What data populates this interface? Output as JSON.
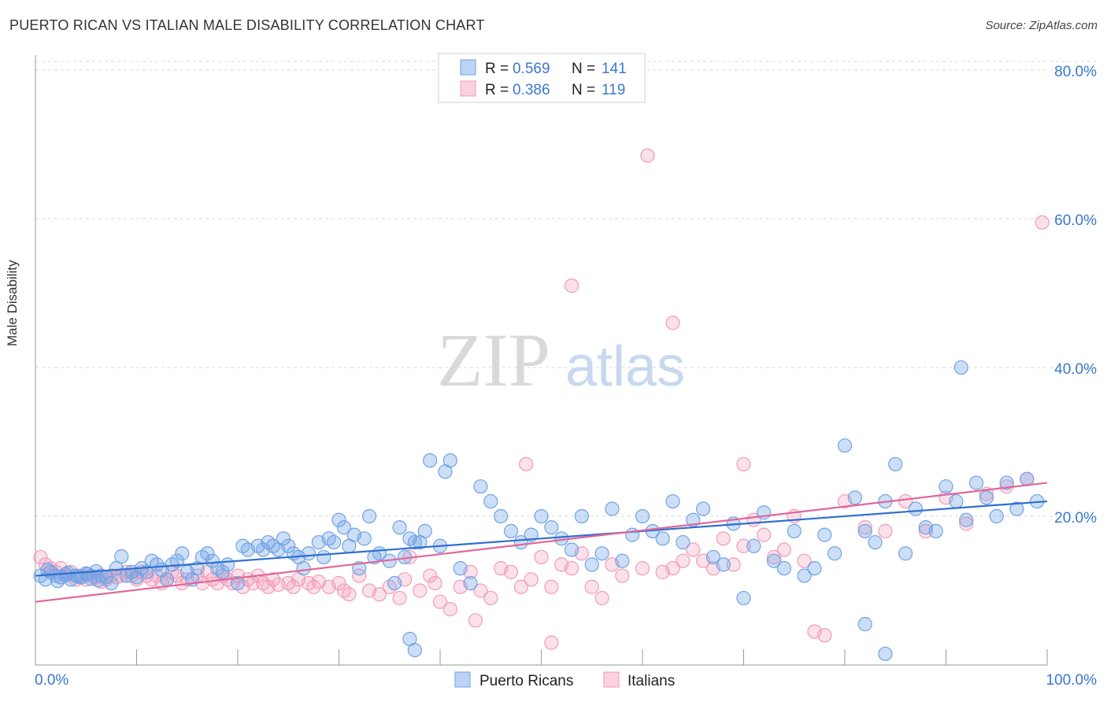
{
  "header": {
    "title": "PUERTO RICAN VS ITALIAN MALE DISABILITY CORRELATION CHART",
    "source": "Source: ZipAtlas.com"
  },
  "watermark": {
    "zip": "ZIP",
    "atlas": "atlas"
  },
  "colors": {
    "blue": "#6fa3e6",
    "blue_line": "#2f6fd0",
    "pink": "#f29bb8",
    "pink_line": "#e0679a",
    "axis_label": "#3b78d0",
    "grid": "#d9d9d9"
  },
  "legend_top": [
    {
      "r_label": "R = ",
      "r_value": "0.569",
      "n_label": "N = ",
      "n_value": "141"
    },
    {
      "r_label": "R = ",
      "r_value": "0.386",
      "n_label": "N = ",
      "n_value": "119"
    }
  ],
  "chart_data": {
    "type": "scatter",
    "title": "PUERTO RICAN VS ITALIAN MALE DISABILITY CORRELATION CHART",
    "xlabel": "",
    "ylabel": "Male Disability",
    "xlim": [
      0,
      100
    ],
    "ylim": [
      0,
      82
    ],
    "x_tick_labels": [
      "0.0%",
      "100.0%"
    ],
    "y_tick_labels": [
      "20.0%",
      "40.0%",
      "60.0%",
      "80.0%"
    ],
    "y_ticks": [
      20,
      40,
      60,
      80
    ],
    "grid": true,
    "legend_position": "bottom",
    "series": [
      {
        "name": "Puerto Ricans",
        "color": "#6fa3e6",
        "r": 0.569,
        "n": 141,
        "trend": {
          "x": [
            0,
            100
          ],
          "y": [
            12.0,
            22.0
          ]
        },
        "points": [
          [
            0.5,
            12.0
          ],
          [
            1,
            11.5
          ],
          [
            1.5,
            12.5
          ],
          [
            2,
            12.0
          ],
          [
            2.5,
            11.8
          ],
          [
            3,
            12.2
          ],
          [
            3.5,
            11.5
          ],
          [
            4,
            12.0
          ],
          [
            4.5,
            11.8
          ],
          [
            5,
            12.3
          ],
          [
            5.5,
            11.6
          ],
          [
            6,
            12.6
          ],
          [
            6.5,
            12.0
          ],
          [
            7,
            11.8
          ],
          [
            7.5,
            11.0
          ],
          [
            8,
            13.0
          ],
          [
            8.5,
            14.6
          ],
          [
            9,
            12.0
          ],
          [
            9.5,
            12.5
          ],
          [
            10,
            11.8
          ],
          [
            10.5,
            13.0
          ],
          [
            11,
            12.5
          ],
          [
            11.5,
            14.0
          ],
          [
            12,
            13.5
          ],
          [
            12.5,
            12.8
          ],
          [
            13,
            11.5
          ],
          [
            13.5,
            13.5
          ],
          [
            14,
            14.0
          ],
          [
            14.5,
            15.0
          ],
          [
            15,
            12.5
          ],
          [
            15.5,
            11.5
          ],
          [
            16,
            13.0
          ],
          [
            16.5,
            14.5
          ],
          [
            17,
            15.0
          ],
          [
            17.5,
            14.0
          ],
          [
            18,
            13.0
          ],
          [
            18.5,
            12.5
          ],
          [
            19,
            13.5
          ],
          [
            20,
            11.0
          ],
          [
            20.5,
            16.0
          ],
          [
            21,
            15.5
          ],
          [
            22,
            16.0
          ],
          [
            22.5,
            15.5
          ],
          [
            23,
            16.5
          ],
          [
            23.5,
            16.0
          ],
          [
            24,
            15.5
          ],
          [
            24.5,
            17.0
          ],
          [
            25,
            16.0
          ],
          [
            25.5,
            15.0
          ],
          [
            26,
            14.5
          ],
          [
            26.5,
            13.0
          ],
          [
            27,
            15.0
          ],
          [
            28,
            16.5
          ],
          [
            28.5,
            14.5
          ],
          [
            29,
            17.0
          ],
          [
            29.5,
            16.5
          ],
          [
            30,
            19.5
          ],
          [
            30.5,
            18.5
          ],
          [
            31,
            16.0
          ],
          [
            31.5,
            17.5
          ],
          [
            32,
            13.0
          ],
          [
            32.5,
            17.0
          ],
          [
            33,
            20.0
          ],
          [
            33.5,
            14.5
          ],
          [
            34,
            15.0
          ],
          [
            35,
            14.0
          ],
          [
            35.5,
            11.0
          ],
          [
            36,
            18.5
          ],
          [
            36.5,
            14.5
          ],
          [
            37,
            17.0
          ],
          [
            37.5,
            16.5
          ],
          [
            38,
            16.5
          ],
          [
            38.5,
            18.0
          ],
          [
            39,
            27.5
          ],
          [
            40,
            16.0
          ],
          [
            40.5,
            26.0
          ],
          [
            41,
            27.5
          ],
          [
            42,
            13.0
          ],
          [
            43,
            11.0
          ],
          [
            44,
            24.0
          ],
          [
            45,
            22.0
          ],
          [
            46,
            20.0
          ],
          [
            47,
            18.0
          ],
          [
            48,
            16.5
          ],
          [
            49,
            17.5
          ],
          [
            50,
            20.0
          ],
          [
            51,
            18.5
          ],
          [
            52,
            17.0
          ],
          [
            53,
            15.5
          ],
          [
            54,
            20.0
          ],
          [
            55,
            13.5
          ],
          [
            56,
            15.0
          ],
          [
            57,
            21.0
          ],
          [
            58,
            14.0
          ],
          [
            59,
            17.5
          ],
          [
            60,
            20.0
          ],
          [
            61,
            18.0
          ],
          [
            62,
            17.0
          ],
          [
            63,
            22.0
          ],
          [
            64,
            16.5
          ],
          [
            65,
            19.5
          ],
          [
            66,
            21.0
          ],
          [
            67,
            14.5
          ],
          [
            68,
            13.5
          ],
          [
            69,
            19.0
          ],
          [
            70,
            9.0
          ],
          [
            71,
            16.0
          ],
          [
            72,
            20.5
          ],
          [
            73,
            14.0
          ],
          [
            74,
            13.0
          ],
          [
            75,
            18.0
          ],
          [
            76,
            12.0
          ],
          [
            77,
            13.0
          ],
          [
            78,
            17.5
          ],
          [
            79,
            15.0
          ],
          [
            80,
            29.5
          ],
          [
            81,
            22.5
          ],
          [
            82,
            18.0
          ],
          [
            83,
            16.5
          ],
          [
            84,
            22.0
          ],
          [
            85,
            27.0
          ],
          [
            86,
            15.0
          ],
          [
            87,
            21.0
          ],
          [
            88,
            18.5
          ],
          [
            89,
            18.0
          ],
          [
            90,
            24.0
          ],
          [
            91,
            22.0
          ],
          [
            92,
            19.5
          ],
          [
            93,
            24.5
          ],
          [
            94,
            22.5
          ],
          [
            95,
            20.0
          ],
          [
            96,
            24.5
          ],
          [
            97,
            21.0
          ],
          [
            98,
            25.0
          ],
          [
            99,
            22.0
          ],
          [
            37,
            3.5
          ],
          [
            37.5,
            2.0
          ],
          [
            82,
            5.5
          ],
          [
            84,
            1.5
          ],
          [
            91.5,
            40.0
          ],
          [
            1.2,
            12.8
          ],
          [
            2.2,
            11.3
          ],
          [
            3.2,
            12.4
          ],
          [
            4.2,
            11.9
          ],
          [
            5.2,
            12.2
          ],
          [
            6.2,
            11.4
          ]
        ]
      },
      {
        "name": "Italians",
        "color": "#f29bb8",
        "r": 0.386,
        "n": 119,
        "trend": {
          "x": [
            0,
            100
          ],
          "y": [
            8.5,
            24.5
          ]
        },
        "points": [
          [
            0.5,
            14.5
          ],
          [
            1,
            13.5
          ],
          [
            1.5,
            13.0
          ],
          [
            2,
            12.5
          ],
          [
            2.5,
            13.0
          ],
          [
            3,
            12.0
          ],
          [
            3.5,
            12.5
          ],
          [
            4,
            11.5
          ],
          [
            4.5,
            12.0
          ],
          [
            5,
            11.5
          ],
          [
            5.5,
            12.0
          ],
          [
            6,
            11.8
          ],
          [
            6.5,
            11.2
          ],
          [
            7,
            11.5
          ],
          [
            7.5,
            12.0
          ],
          [
            8,
            11.8
          ],
          [
            8.5,
            12.0
          ],
          [
            9,
            12.5
          ],
          [
            9.5,
            12.0
          ],
          [
            10,
            11.5
          ],
          [
            10.5,
            12.5
          ],
          [
            11,
            12.0
          ],
          [
            11.5,
            11.5
          ],
          [
            12,
            12.0
          ],
          [
            12.5,
            11.0
          ],
          [
            13,
            11.5
          ],
          [
            13.5,
            12.5
          ],
          [
            14,
            12.0
          ],
          [
            14.5,
            11.0
          ],
          [
            15,
            11.5
          ],
          [
            16,
            12.0
          ],
          [
            16.5,
            11.0
          ],
          [
            17,
            12.5
          ],
          [
            17.5,
            11.5
          ],
          [
            18,
            11.0
          ],
          [
            18.5,
            12.0
          ],
          [
            19,
            11.5
          ],
          [
            19.5,
            11.0
          ],
          [
            20,
            12.0
          ],
          [
            20.5,
            10.5
          ],
          [
            21,
            11.5
          ],
          [
            21.5,
            11.0
          ],
          [
            22,
            12.0
          ],
          [
            22.5,
            11.0
          ],
          [
            23,
            10.5
          ],
          [
            23.5,
            11.5
          ],
          [
            24,
            10.8
          ],
          [
            25,
            11.0
          ],
          [
            25.5,
            10.5
          ],
          [
            26,
            11.5
          ],
          [
            27,
            11.0
          ],
          [
            27.5,
            10.5
          ],
          [
            28,
            11.2
          ],
          [
            29,
            10.5
          ],
          [
            30,
            11.0
          ],
          [
            30.5,
            10.0
          ],
          [
            31,
            9.5
          ],
          [
            32,
            12.0
          ],
          [
            33,
            10.0
          ],
          [
            34,
            9.5
          ],
          [
            35,
            10.5
          ],
          [
            36,
            9.0
          ],
          [
            36.5,
            11.5
          ],
          [
            37,
            14.5
          ],
          [
            38,
            10.0
          ],
          [
            39,
            12.0
          ],
          [
            39.5,
            11.0
          ],
          [
            40,
            8.5
          ],
          [
            41,
            7.5
          ],
          [
            42,
            10.5
          ],
          [
            43,
            12.5
          ],
          [
            44,
            10.0
          ],
          [
            45,
            9.0
          ],
          [
            46,
            13.0
          ],
          [
            47,
            12.5
          ],
          [
            48,
            10.5
          ],
          [
            49,
            11.5
          ],
          [
            50,
            14.5
          ],
          [
            51,
            10.5
          ],
          [
            52,
            13.5
          ],
          [
            53,
            13.0
          ],
          [
            54,
            15.0
          ],
          [
            55,
            10.5
          ],
          [
            56,
            9.0
          ],
          [
            57,
            13.5
          ],
          [
            58,
            12.0
          ],
          [
            60,
            13.0
          ],
          [
            62,
            12.5
          ],
          [
            63,
            13.0
          ],
          [
            64,
            14.0
          ],
          [
            65,
            15.5
          ],
          [
            66,
            14.0
          ],
          [
            67,
            13.0
          ],
          [
            68,
            17.0
          ],
          [
            69,
            13.5
          ],
          [
            70,
            16.0
          ],
          [
            71,
            19.5
          ],
          [
            72,
            17.5
          ],
          [
            73,
            14.5
          ],
          [
            74,
            15.5
          ],
          [
            75,
            20.0
          ],
          [
            76,
            14.0
          ],
          [
            77,
            4.5
          ],
          [
            78,
            4.0
          ],
          [
            80,
            22.0
          ],
          [
            82,
            18.5
          ],
          [
            84,
            18.0
          ],
          [
            86,
            22.0
          ],
          [
            88,
            18.0
          ],
          [
            90,
            22.5
          ],
          [
            92,
            19.0
          ],
          [
            94,
            23.0
          ],
          [
            96,
            24.0
          ],
          [
            98,
            25.0
          ],
          [
            99.5,
            59.5
          ],
          [
            60.5,
            68.5
          ],
          [
            53,
            51.0
          ],
          [
            63,
            46.0
          ],
          [
            70,
            27.0
          ],
          [
            48.5,
            27.0
          ],
          [
            51,
            3.0
          ],
          [
            43.5,
            6.0
          ]
        ]
      }
    ]
  },
  "legend_bottom": [
    {
      "label": "Puerto Ricans"
    },
    {
      "label": "Italians"
    }
  ]
}
